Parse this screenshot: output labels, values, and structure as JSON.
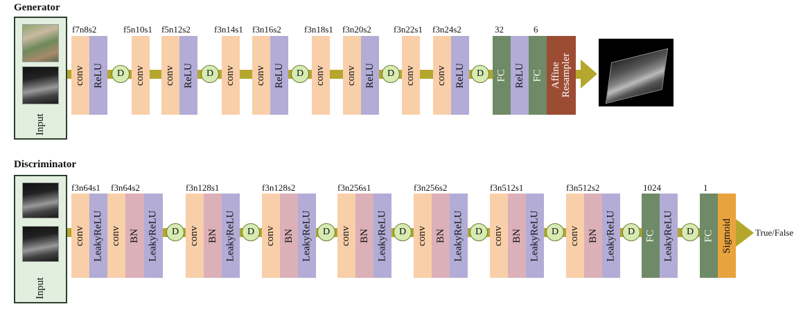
{
  "generator": {
    "title": "Generator",
    "input_label": "Input",
    "params": [
      "f7n8s2",
      "f5n10s1",
      "f5n12s2",
      "f3n14s1",
      "f3n16s2",
      "f3n18s1",
      "f3n20s2",
      "f3n22s1",
      "f3n24s2",
      "32",
      "6"
    ],
    "layers": {
      "conv": "conv",
      "relu": "ReLU",
      "fc": "FC",
      "affine": "Affine",
      "resampler": "Resampler"
    },
    "d_label": "D"
  },
  "discriminator": {
    "title": "Discriminator",
    "input_label": "Input",
    "params": [
      "f3n64s1",
      "f3n64s2",
      "f3n128s1",
      "f3n128s2",
      "f3n256s1",
      "f3n256s2",
      "f3n512s1",
      "f3n512s2",
      "1024",
      "1"
    ],
    "layers": {
      "conv": "conv",
      "leaky": "LeakyReLU",
      "bn": "BN",
      "fc": "FC",
      "sigmoid": "Sigmoid"
    },
    "d_label": "D",
    "output": "True/False"
  },
  "colors": {
    "conv": "#f8cfa9",
    "relu": "#b2acd6",
    "bn": "#dcb0b8",
    "fc": "#6f8a66",
    "affine": "#9d4c34",
    "sigmoid": "#e9a33e",
    "dropout": "#d7ebb3",
    "pipe": "#b5a72d",
    "input_bg": "#e2efdf"
  }
}
